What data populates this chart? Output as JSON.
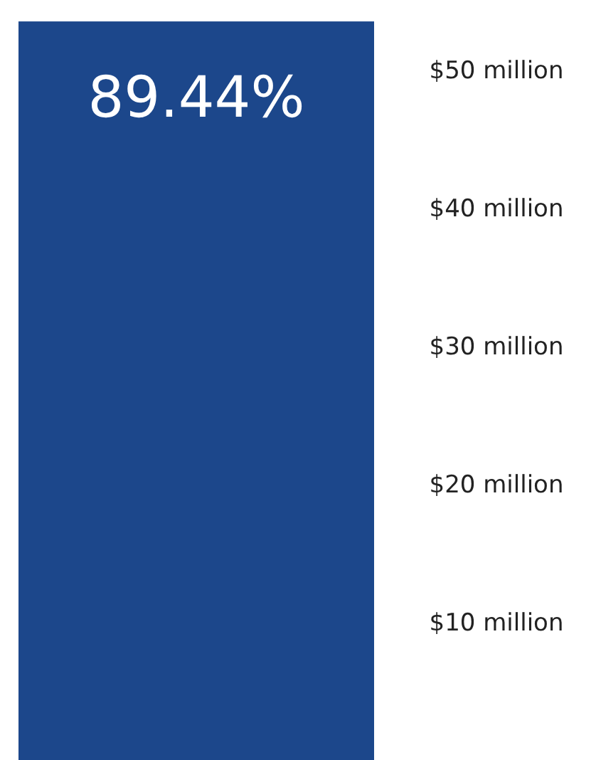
{
  "chart_data": {
    "type": "bar",
    "categories": [
      null
    ],
    "values": [
      53.5
    ],
    "color": "#1c478b",
    "annotations": [
      "89.44%"
    ],
    "ylim": [
      0,
      55
    ],
    "yticks": [
      {
        "value": 10,
        "label": "$10 million"
      },
      {
        "value": 20,
        "label": "$20 million"
      },
      {
        "value": 30,
        "label": "$30 million"
      },
      {
        "value": 40,
        "label": "$40 million"
      },
      {
        "value": 50,
        "label": "$50 million"
      }
    ]
  }
}
